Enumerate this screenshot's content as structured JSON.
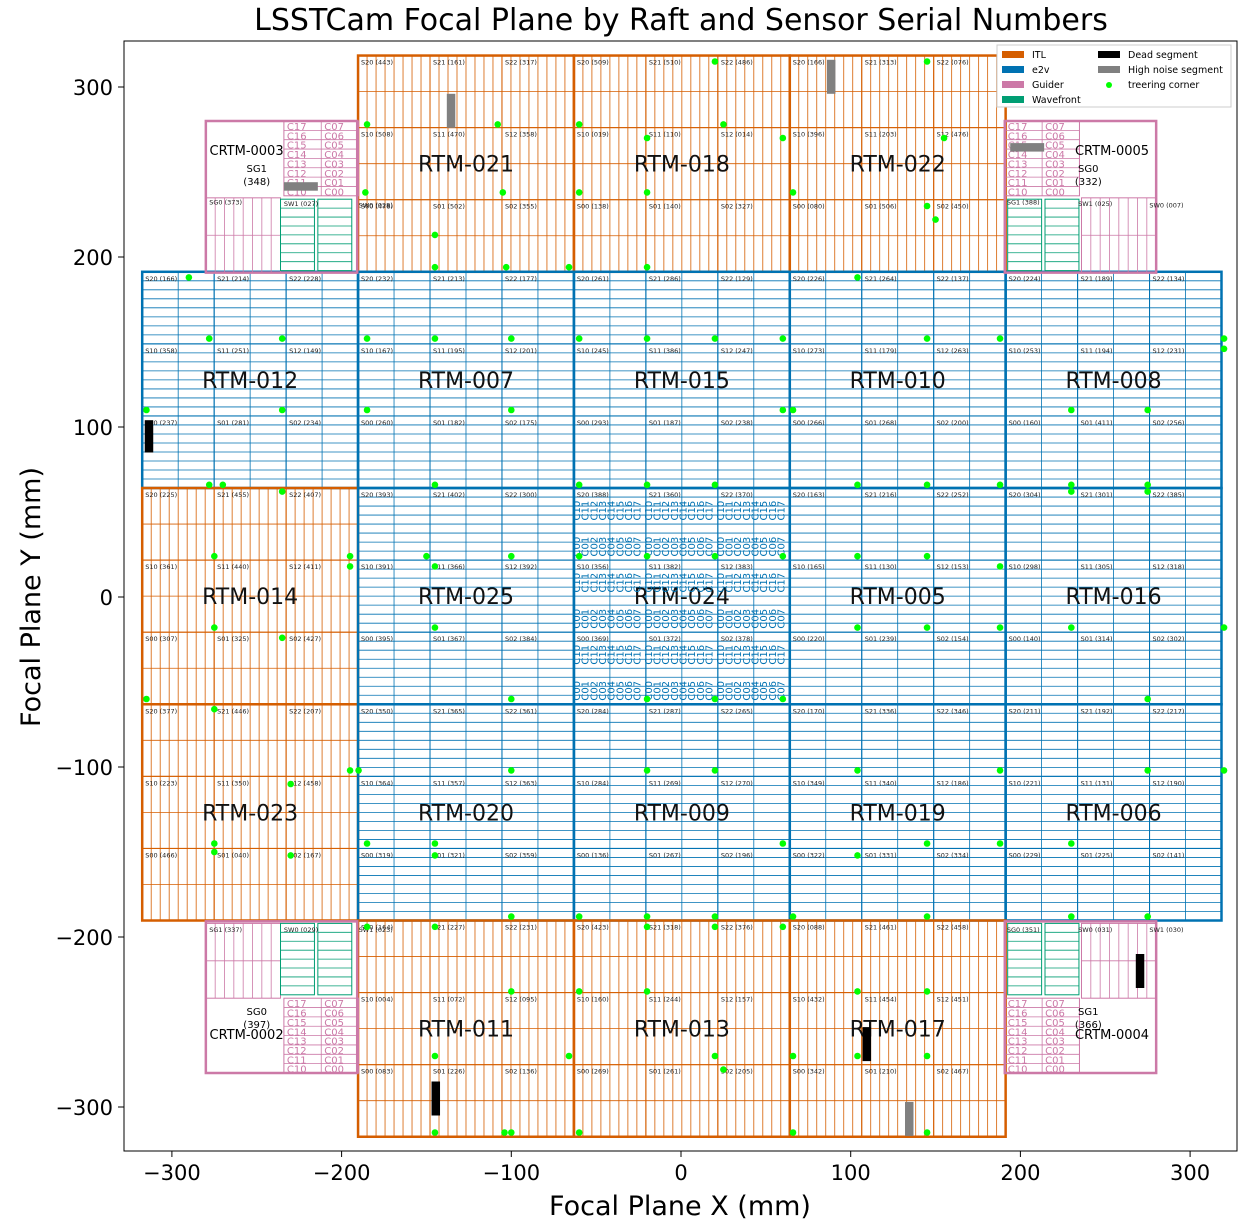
{
  "title": "LSSTCam Focal Plane by Raft and Sensor Serial Numbers",
  "xlabel": "Focal Plane X (mm)",
  "ylabel": "Focal Plane Y (mm)",
  "xlim": [
    -325,
    325
  ],
  "ylim": [
    -325,
    325
  ],
  "xticks": [
    -300,
    -200,
    -100,
    0,
    100,
    200,
    300
  ],
  "yticks": [
    -300,
    -200,
    -100,
    0,
    100,
    200,
    300
  ],
  "colors": {
    "ITL": "#d55e00",
    "e2v": "#0072b2",
    "Guider": "#cc79a7",
    "Wavefront": "#009e73",
    "dead": "#000000",
    "noise": "#808080",
    "treering": "#00ff00"
  },
  "legend": {
    "placement": "top-right",
    "entries": [
      {
        "label": "ITL",
        "key": "ITL",
        "kind": "patch"
      },
      {
        "label": "Dead segment",
        "key": "dead",
        "kind": "patch"
      },
      {
        "label": "e2v",
        "key": "e2v",
        "kind": "patch"
      },
      {
        "label": "High noise segment",
        "key": "noise",
        "kind": "patch"
      },
      {
        "label": "Guider",
        "key": "Guider",
        "kind": "patch"
      },
      {
        "label": "treering corner",
        "key": "treering",
        "kind": "dot"
      },
      {
        "label": "Wavefront",
        "key": "Wavefront",
        "kind": "patch"
      }
    ]
  },
  "slots": [
    "S20",
    "S21",
    "S22",
    "S10",
    "S11",
    "S12",
    "S00",
    "S01",
    "S02"
  ],
  "rafts": [
    {
      "name": "RTM-021",
      "row": 4,
      "col": 1,
      "type": "ITL",
      "sensors": [
        "443",
        "161",
        "317",
        "508",
        "470",
        "358",
        "478",
        "502",
        "355"
      ]
    },
    {
      "name": "RTM-018",
      "row": 4,
      "col": 2,
      "type": "ITL",
      "sensors": [
        "509",
        "510",
        "486",
        "019",
        "110",
        "014",
        "138",
        "140",
        "327"
      ]
    },
    {
      "name": "RTM-022",
      "row": 4,
      "col": 3,
      "type": "ITL",
      "sensors": [
        "166",
        "313",
        "076",
        "396",
        "203",
        "476",
        "080",
        "506",
        "450"
      ]
    },
    {
      "name": "RTM-012",
      "row": 3,
      "col": 0,
      "type": "e2v",
      "sensors": [
        "166",
        "214",
        "228",
        "358",
        "251",
        "149",
        "237",
        "281",
        "234"
      ]
    },
    {
      "name": "RTM-007",
      "row": 3,
      "col": 1,
      "type": "e2v",
      "sensors": [
        "232",
        "213",
        "177",
        "167",
        "195",
        "201",
        "260",
        "182",
        "175"
      ]
    },
    {
      "name": "RTM-015",
      "row": 3,
      "col": 2,
      "type": "e2v",
      "sensors": [
        "261",
        "286",
        "129",
        "245",
        "386",
        "247",
        "293",
        "187",
        "238"
      ]
    },
    {
      "name": "RTM-010",
      "row": 3,
      "col": 3,
      "type": "e2v",
      "sensors": [
        "226",
        "264",
        "137",
        "273",
        "179",
        "263",
        "266",
        "268",
        "200"
      ]
    },
    {
      "name": "RTM-008",
      "row": 3,
      "col": 4,
      "type": "e2v",
      "sensors": [
        "224",
        "189",
        "134",
        "253",
        "194",
        "231",
        "160",
        "411",
        "256"
      ]
    },
    {
      "name": "RTM-014",
      "row": 2,
      "col": 0,
      "type": "ITL",
      "sensors": [
        "225",
        "455",
        "407",
        "361",
        "440",
        "411",
        "307",
        "325",
        "427"
      ]
    },
    {
      "name": "RTM-025",
      "row": 2,
      "col": 1,
      "type": "e2v",
      "sensors": [
        "393",
        "402",
        "300",
        "391",
        "366",
        "392",
        "395",
        "367",
        "384"
      ]
    },
    {
      "name": "RTM-024",
      "row": 2,
      "col": 2,
      "type": "e2v",
      "sensors": [
        "388",
        "360",
        "370",
        "356",
        "382",
        "383",
        "369",
        "372",
        "378"
      ]
    },
    {
      "name": "RTM-005",
      "row": 2,
      "col": 3,
      "type": "e2v",
      "sensors": [
        "163",
        "216",
        "252",
        "165",
        "130",
        "153",
        "220",
        "239",
        "154"
      ]
    },
    {
      "name": "RTM-016",
      "row": 2,
      "col": 4,
      "type": "e2v",
      "sensors": [
        "304",
        "301",
        "385",
        "298",
        "305",
        "318",
        "140",
        "314",
        "302"
      ]
    },
    {
      "name": "RTM-023",
      "row": 1,
      "col": 0,
      "type": "ITL",
      "sensors": [
        "377",
        "446",
        "207",
        "223",
        "350",
        "458",
        "466",
        "040",
        "167"
      ]
    },
    {
      "name": "RTM-020",
      "row": 1,
      "col": 1,
      "type": "e2v",
      "sensors": [
        "350",
        "365",
        "361",
        "364",
        "357",
        "363",
        "319",
        "321",
        "359"
      ]
    },
    {
      "name": "RTM-009",
      "row": 1,
      "col": 2,
      "type": "e2v",
      "sensors": [
        "284",
        "287",
        "265",
        "284",
        "269",
        "270",
        "136",
        "267",
        "196"
      ]
    },
    {
      "name": "RTM-019",
      "row": 1,
      "col": 3,
      "type": "e2v",
      "sensors": [
        "170",
        "336",
        "346",
        "349",
        "340",
        "186",
        "322",
        "331",
        "334"
      ]
    },
    {
      "name": "RTM-006",
      "row": 1,
      "col": 4,
      "type": "e2v",
      "sensors": [
        "211",
        "192",
        "217",
        "221",
        "131",
        "190",
        "229",
        "225",
        "141"
      ]
    },
    {
      "name": "RTM-011",
      "row": 0,
      "col": 1,
      "type": "ITL",
      "sensors": [
        "164",
        "227",
        "231",
        "004",
        "072",
        "095",
        "083",
        "226",
        "136"
      ]
    },
    {
      "name": "RTM-013",
      "row": 0,
      "col": 2,
      "type": "ITL",
      "sensors": [
        "423",
        "318",
        "376",
        "160",
        "244",
        "157",
        "269",
        "261",
        "205"
      ]
    },
    {
      "name": "RTM-017",
      "row": 0,
      "col": 3,
      "type": "ITL",
      "sensors": [
        "088",
        "461",
        "458",
        "432",
        "454",
        "451",
        "342",
        "210",
        "467"
      ]
    }
  ],
  "corner_rafts": [
    {
      "name": "CRTM-0003",
      "pos": "top-left",
      "sensors": [
        {
          "slot": "SG1",
          "serial": "348",
          "label": "SG1 (348)",
          "main": "SG1\n(348)"
        },
        {
          "slot": "SG0",
          "serial": "373",
          "label": "SG0 (373)"
        },
        {
          "slot": "SW1",
          "serial": "027",
          "label": "SW1 (027)"
        },
        {
          "slot": "SW0",
          "serial": "028",
          "label": "SW0 (028)"
        }
      ]
    },
    {
      "name": "CRTM-0005",
      "pos": "top-right",
      "sensors": [
        {
          "slot": "SG0",
          "serial": "332",
          "label": "SG0 (332)",
          "main": "SG0\n(332)"
        },
        {
          "slot": "SG1",
          "serial": "388",
          "label": "SG1 (388)"
        },
        {
          "slot": "SW1",
          "serial": "025",
          "label": "SW1 (025)"
        },
        {
          "slot": "SW0",
          "serial": "007",
          "label": "SW0 (007)"
        }
      ]
    },
    {
      "name": "CRTM-0002",
      "pos": "bottom-left",
      "sensors": [
        {
          "slot": "SG0",
          "serial": "397",
          "label": "SG0 (397)",
          "main": "SG0\n(397)"
        },
        {
          "slot": "SG1",
          "serial": "337",
          "label": "SG1 (337)"
        },
        {
          "slot": "SW0",
          "serial": "029",
          "label": "SW0 (029)"
        },
        {
          "slot": "SW1",
          "serial": "023",
          "label": "SW1 (023)"
        }
      ]
    },
    {
      "name": "CRTM-0004",
      "pos": "bottom-right",
      "sensors": [
        {
          "slot": "SG1",
          "serial": "366",
          "label": "SG1 (366)",
          "main": "SG1\n(366)"
        },
        {
          "slot": "SG0",
          "serial": "351",
          "label": "SG0 (351)"
        },
        {
          "slot": "SW0",
          "serial": "031",
          "label": "SW0 (031)"
        },
        {
          "slot": "SW1",
          "serial": "030",
          "label": "SW1 (030)"
        }
      ]
    }
  ],
  "amp_labels_top": [
    "C10",
    "C11",
    "C12",
    "C13",
    "C14",
    "C15",
    "C16",
    "C17"
  ],
  "amp_labels_bottom": [
    "C00",
    "C01",
    "C02",
    "C03",
    "C04",
    "C05",
    "C06",
    "C07"
  ],
  "amp_labels_rot_top": [
    "C07",
    "C06",
    "C05",
    "C04",
    "C03",
    "C02",
    "C01",
    "C00"
  ],
  "amp_labels_rot_bottom": [
    "C17",
    "C16",
    "C15",
    "C14",
    "C13",
    "C12",
    "C11",
    "C10"
  ],
  "dead_segments": [
    [
      -316,
      85,
      -311,
      104
    ],
    [
      -147,
      -305,
      -142,
      -285
    ],
    [
      107,
      -273,
      112,
      -253
    ]
  ],
  "noise_segments": [
    [
      -138,
      276,
      -133,
      296
    ],
    [
      86,
      296,
      91,
      316
    ],
    [
      132,
      -317,
      137,
      -297
    ],
    [
      194,
      262,
      214,
      267
    ],
    [
      -234,
      239,
      -214,
      244
    ]
  ],
  "dead_corner_segments": [
    [
      268,
      -230,
      273,
      -210
    ]
  ],
  "treering_points": [
    [
      -185,
      278
    ],
    [
      -145,
      213
    ],
    [
      -108,
      278
    ],
    [
      -105,
      238
    ],
    [
      -145,
      194
    ],
    [
      -103,
      194
    ],
    [
      -186,
      238
    ],
    [
      -60,
      278
    ],
    [
      -20,
      270
    ],
    [
      25,
      278
    ],
    [
      -66,
      194
    ],
    [
      -20,
      194
    ],
    [
      20,
      315
    ],
    [
      -60,
      238
    ],
    [
      60,
      270
    ],
    [
      -20,
      238
    ],
    [
      145,
      315
    ],
    [
      155,
      270
    ],
    [
      66,
      238
    ],
    [
      145,
      230
    ],
    [
      150,
      222
    ],
    [
      -290,
      188
    ],
    [
      -278,
      152
    ],
    [
      -235,
      152
    ],
    [
      -185,
      152
    ],
    [
      -145,
      152
    ],
    [
      -100,
      152
    ],
    [
      -60,
      152
    ],
    [
      -20,
      152
    ],
    [
      20,
      152
    ],
    [
      60,
      152
    ],
    [
      104,
      188
    ],
    [
      145,
      152
    ],
    [
      188,
      152
    ],
    [
      230,
      110
    ],
    [
      275,
      110
    ],
    [
      320,
      152
    ],
    [
      320,
      146
    ],
    [
      -315,
      110
    ],
    [
      -278,
      66
    ],
    [
      -270,
      66
    ],
    [
      -235,
      110
    ],
    [
      -185,
      110
    ],
    [
      -145,
      66
    ],
    [
      -100,
      110
    ],
    [
      60,
      110
    ],
    [
      66,
      110
    ],
    [
      -60,
      66
    ],
    [
      -20,
      66
    ],
    [
      20,
      66
    ],
    [
      104,
      66
    ],
    [
      145,
      66
    ],
    [
      188,
      66
    ],
    [
      230,
      66
    ],
    [
      275,
      66
    ],
    [
      -275,
      24
    ],
    [
      -235,
      62
    ],
    [
      -195,
      24
    ],
    [
      -195,
      18
    ],
    [
      -145,
      18
    ],
    [
      -100,
      24
    ],
    [
      -150,
      24
    ],
    [
      -60,
      24
    ],
    [
      -20,
      24
    ],
    [
      20,
      24
    ],
    [
      60,
      24
    ],
    [
      104,
      24
    ],
    [
      145,
      24
    ],
    [
      188,
      18
    ],
    [
      230,
      62
    ],
    [
      275,
      62
    ],
    [
      -275,
      -18
    ],
    [
      -235,
      -24
    ],
    [
      -145,
      -18
    ],
    [
      -100,
      -60
    ],
    [
      -20,
      -60
    ],
    [
      20,
      -60
    ],
    [
      60,
      -60
    ],
    [
      104,
      -18
    ],
    [
      145,
      -18
    ],
    [
      188,
      -18
    ],
    [
      230,
      -18
    ],
    [
      275,
      -60
    ],
    [
      320,
      -18
    ],
    [
      -315,
      -60
    ],
    [
      -275,
      -66
    ],
    [
      -230,
      -110
    ],
    [
      -195,
      -102
    ],
    [
      -190,
      -102
    ],
    [
      -145,
      -145
    ],
    [
      -100,
      -102
    ],
    [
      -20,
      -102
    ],
    [
      20,
      -102
    ],
    [
      60,
      -145
    ],
    [
      104,
      -102
    ],
    [
      145,
      -145
    ],
    [
      188,
      -102
    ],
    [
      230,
      -145
    ],
    [
      275,
      -102
    ],
    [
      320,
      -102
    ],
    [
      -275,
      -145
    ],
    [
      -275,
      -150
    ],
    [
      -230,
      -152
    ],
    [
      -185,
      -145
    ],
    [
      -145,
      -152
    ],
    [
      -100,
      -188
    ],
    [
      -60,
      -188
    ],
    [
      -20,
      -188
    ],
    [
      20,
      -188
    ],
    [
      66,
      -188
    ],
    [
      104,
      -152
    ],
    [
      145,
      -188
    ],
    [
      188,
      -145
    ],
    [
      230,
      -188
    ],
    [
      275,
      -188
    ],
    [
      -185,
      -194
    ],
    [
      -145,
      -194
    ],
    [
      -100,
      -232
    ],
    [
      -60,
      -232
    ],
    [
      -20,
      -194
    ],
    [
      20,
      -194
    ],
    [
      60,
      -194
    ],
    [
      104,
      -232
    ],
    [
      145,
      -232
    ],
    [
      -145,
      -270
    ],
    [
      -66,
      -270
    ],
    [
      -20,
      -232
    ],
    [
      20,
      -270
    ],
    [
      66,
      -270
    ],
    [
      104,
      -270
    ],
    [
      145,
      -270
    ],
    [
      -145,
      -315
    ],
    [
      -104,
      -315
    ],
    [
      -100,
      -315
    ],
    [
      -60,
      -315
    ],
    [
      25,
      -278
    ],
    [
      66,
      -315
    ],
    [
      145,
      -315
    ]
  ]
}
